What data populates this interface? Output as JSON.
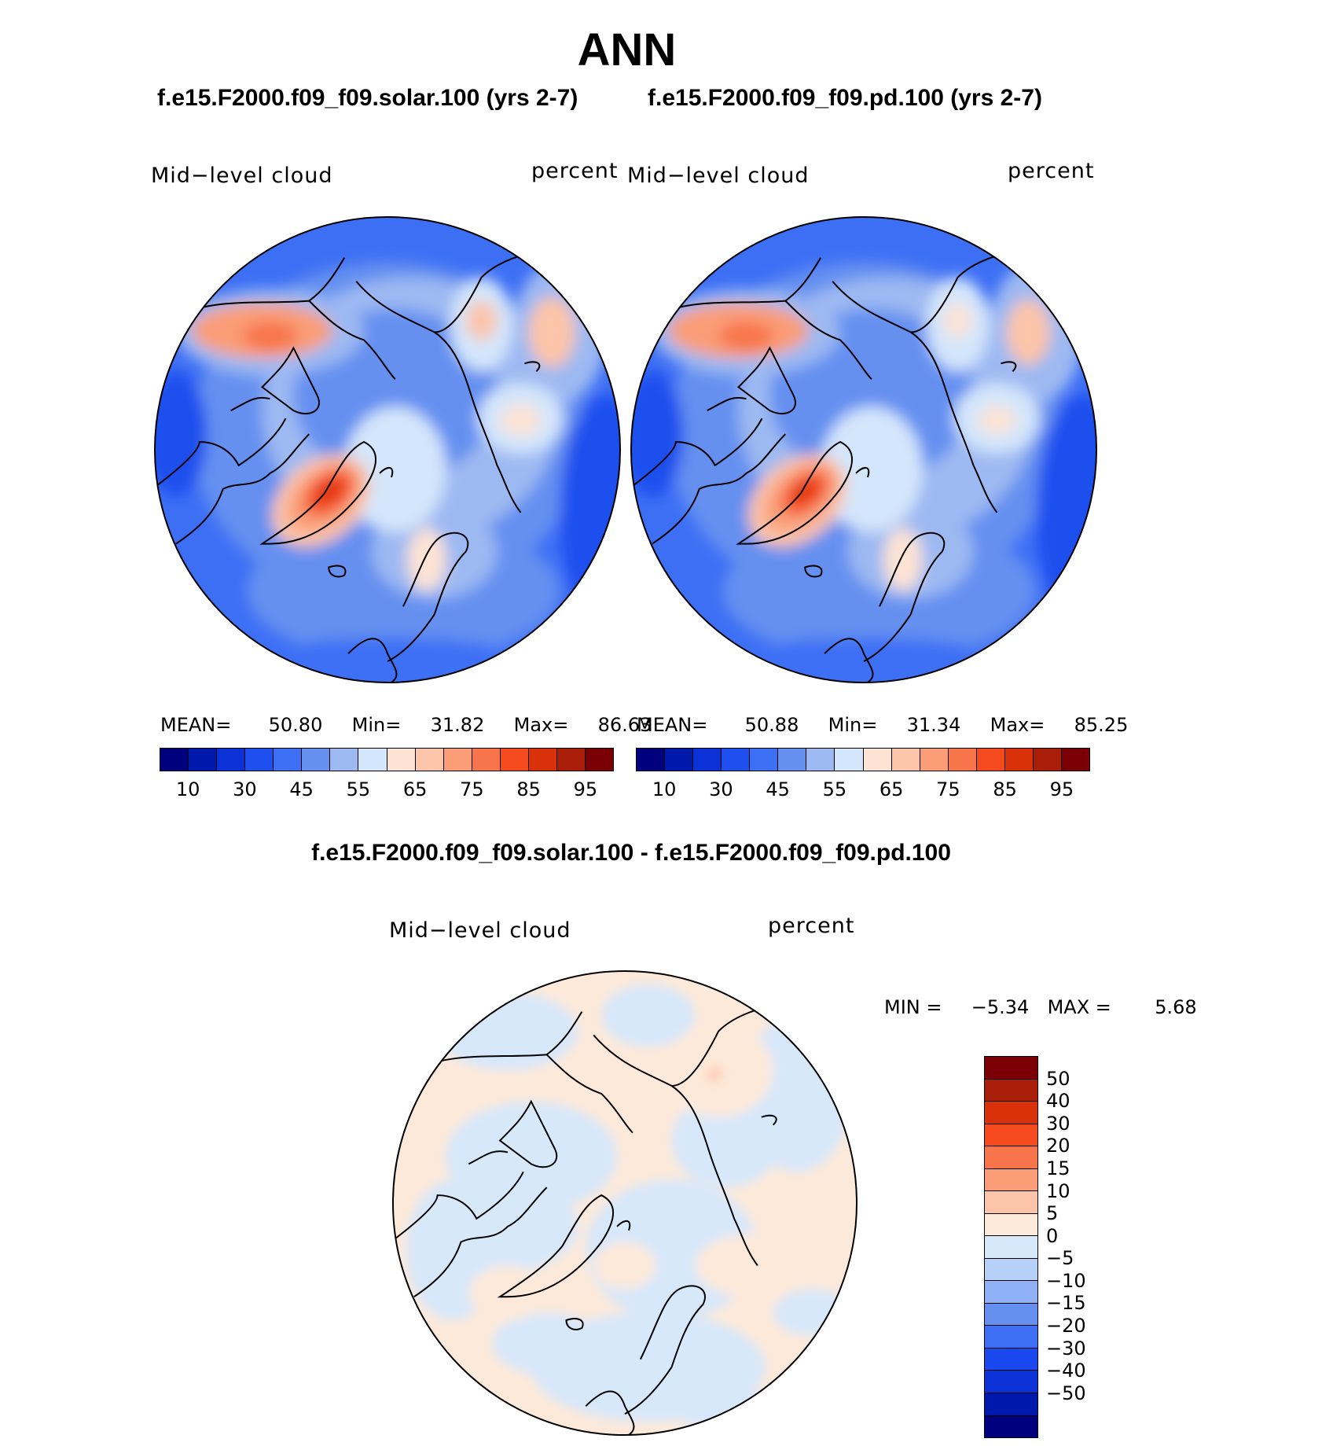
{
  "title": "ANN",
  "panels": [
    {
      "case_title": "f.e15.F2000.f09_f09.solar.100 (yrs 2-7)",
      "variable_label": "Mid−level cloud",
      "units_label": "percent",
      "stats": {
        "mean_label": "MEAN=",
        "mean": "50.80",
        "min_label": "Min=",
        "min": "31.82",
        "max_label": "Max=",
        "max": "86.63"
      }
    },
    {
      "case_title": "f.e15.F2000.f09_f09.pd.100 (yrs 2-7)",
      "variable_label": "Mid−level cloud",
      "units_label": "percent",
      "stats": {
        "mean_label": "MEAN=",
        "mean": "50.88",
        "min_label": "Min=",
        "min": "31.34",
        "max_label": "Max=",
        "max": "85.25"
      }
    }
  ],
  "colorbar": {
    "colors": [
      "#00007f",
      "#0019ad",
      "#0a32d6",
      "#1f4fee",
      "#3d6ff5",
      "#6590f0",
      "#9db9f2",
      "#d4e6fb",
      "#fde3d4",
      "#fcc4a8",
      "#fa9d77",
      "#f8744a",
      "#f44a1e",
      "#d93109",
      "#a91e08",
      "#7a0006"
    ],
    "tick_labels": [
      "10",
      "30",
      "45",
      "55",
      "65",
      "75",
      "85",
      "95"
    ]
  },
  "difference": {
    "title": "f.e15.F2000.f09_f09.solar.100 - f.e15.F2000.f09_f09.pd.100",
    "variable_label": "Mid−level cloud",
    "units_label": "percent",
    "min_label": "MIN =",
    "min": "−5.34",
    "max_label": "MAX =",
    "max": "5.68",
    "colors": [
      "#7a0006",
      "#a91e08",
      "#d93109",
      "#f44a1e",
      "#f8744a",
      "#fa9d77",
      "#fcc4a8",
      "#fde9d9",
      "#d7e8fb",
      "#b7d0f8",
      "#8fb0f5",
      "#6690f0",
      "#3d6ff5",
      "#1a48ef",
      "#0a32d6",
      "#0019ad",
      "#00007f"
    ],
    "tick_labels": [
      "50",
      "40",
      "30",
      "20",
      "15",
      "10",
      "5",
      "0",
      "−5",
      "−10",
      "−15",
      "−20",
      "−30",
      "−40",
      "−50"
    ]
  }
}
